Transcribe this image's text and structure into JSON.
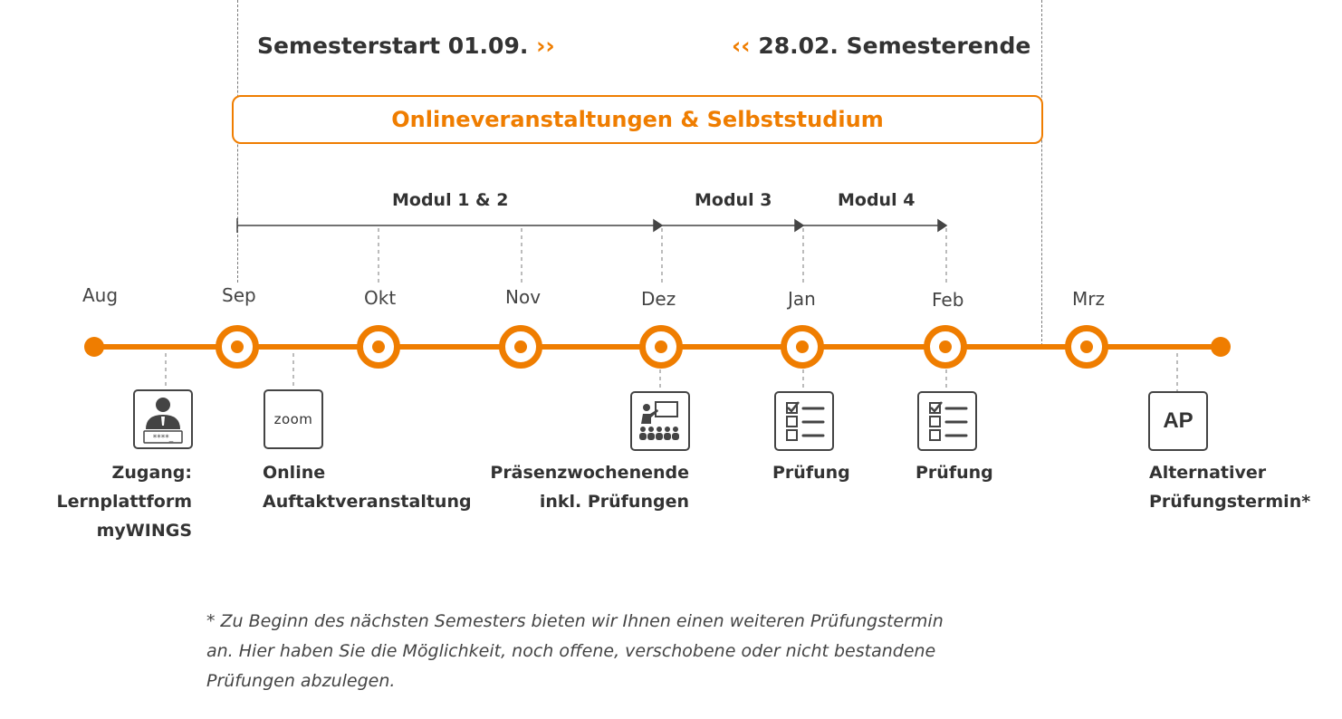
{
  "header": {
    "semester_start": "Semesterstart 01.09.",
    "semester_start_chevron": "››",
    "semester_end": "28.02. Semesterende",
    "semester_end_chevron": "‹‹"
  },
  "online_box": {
    "label": "Onlineveranstaltungen & Selbststudium"
  },
  "modules": [
    {
      "label": "Modul 1 & 2"
    },
    {
      "label": "Modul 3"
    },
    {
      "label": "Modul 4"
    }
  ],
  "months": [
    "Aug",
    "Sep",
    "Okt",
    "Nov",
    "Dez",
    "Jan",
    "Feb",
    "Mrz"
  ],
  "events": [
    {
      "icon": "user-login-icon",
      "lines": [
        "Zugang:",
        "Lernplattform",
        "myWINGS"
      ],
      "password_mask": "****_"
    },
    {
      "icon": "zoom-icon",
      "icon_text": "zoom",
      "lines": [
        "Online",
        "Auftaktveranstaltung"
      ]
    },
    {
      "icon": "presentation-icon",
      "lines": [
        "Präsenzwochenende",
        "inkl. Prüfungen"
      ]
    },
    {
      "icon": "checklist-icon",
      "lines": [
        "Prüfung"
      ]
    },
    {
      "icon": "checklist-icon",
      "lines": [
        "Prüfung"
      ]
    },
    {
      "icon": "ap-icon",
      "icon_text": "AP",
      "lines": [
        "Alternativer",
        "Prüfungstermin*"
      ]
    }
  ],
  "footnote": {
    "line1": "* Zu Beginn des nächsten Semesters bieten wir Ihnen einen weiteren Prüfungstermin",
    "line2": "an. Hier haben Sie die Möglichkeit, noch offene, verschobene oder nicht bestandene",
    "line3": "Prüfungen abzulegen."
  },
  "colors": {
    "accent": "#ef7d00",
    "text": "#333333",
    "dash": "#7a7a7a"
  }
}
